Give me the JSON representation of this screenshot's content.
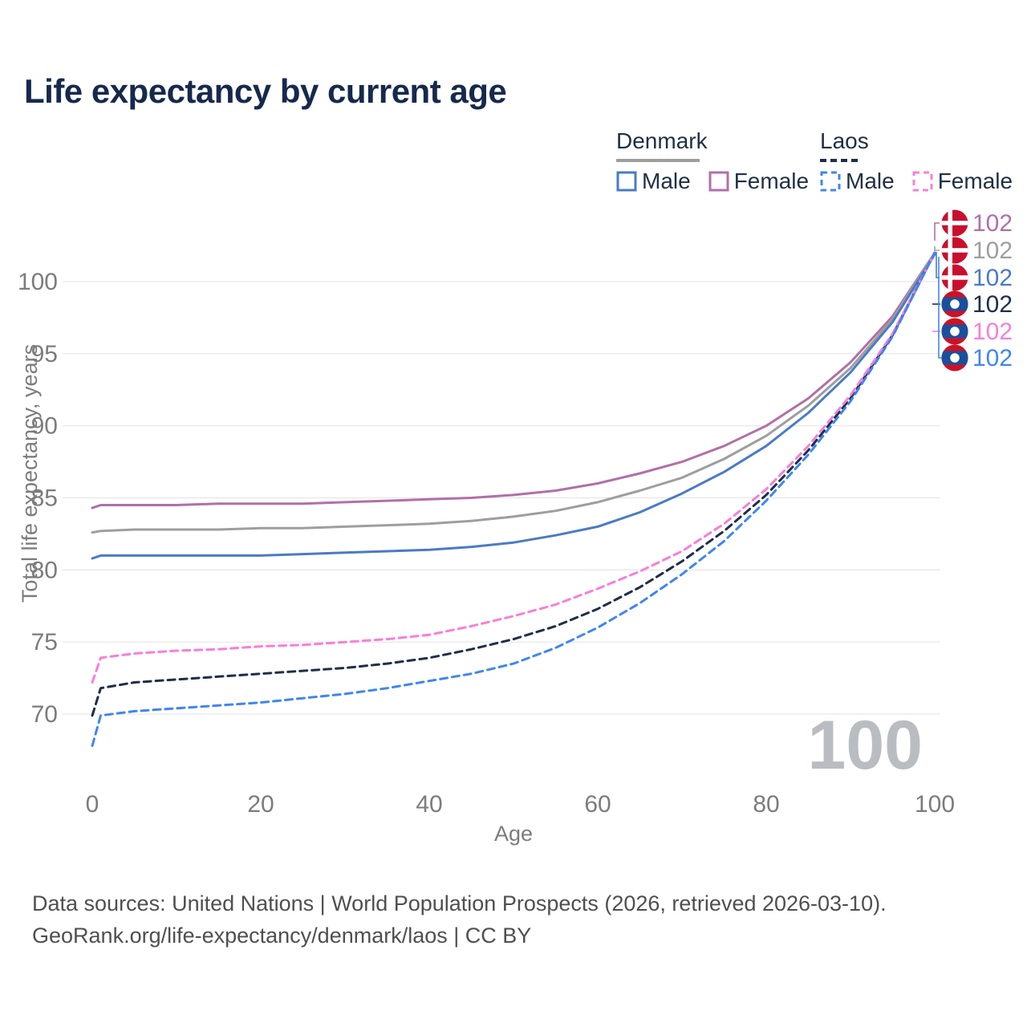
{
  "title": "Life expectancy by current age",
  "legend": {
    "groups": [
      {
        "name": "Denmark",
        "line_style": "solid",
        "underline_color": "#9e9e9e",
        "items": [
          {
            "label": "Male",
            "color": "#4a7bc4",
            "dashed": false
          },
          {
            "label": "Female",
            "color": "#b26fa7",
            "dashed": false
          }
        ]
      },
      {
        "name": "Laos",
        "line_style": "dashed",
        "underline_color": "#1d2e49",
        "items": [
          {
            "label": "Male",
            "color": "#3f86f0",
            "dashed": true
          },
          {
            "label": "Female",
            "color": "#f77fd7",
            "dashed": true
          }
        ]
      }
    ]
  },
  "chart_data": {
    "type": "line",
    "title": "Life expectancy by current age",
    "xlabel": "Age",
    "ylabel": "Total life expectancy, years",
    "xlim": [
      0,
      100
    ],
    "ylim": [
      67,
      102.5
    ],
    "x_ticks": [
      0,
      20,
      40,
      60,
      80,
      100
    ],
    "y_ticks": [
      70,
      75,
      80,
      85,
      90,
      95,
      100
    ],
    "grid": "horizontal",
    "gridline_color": "#e6e6e6",
    "tick_label_color": "#7c7c7c",
    "watermark": "100",
    "watermark_color": "#b9bdc2",
    "x": [
      0,
      1,
      5,
      10,
      15,
      20,
      25,
      30,
      35,
      40,
      45,
      50,
      55,
      60,
      65,
      70,
      75,
      80,
      85,
      90,
      95,
      100
    ],
    "series": [
      {
        "name": "Denmark Female",
        "country": "denmark",
        "sex": "female",
        "color": "#b26fa7",
        "dashed": false,
        "values": [
          84.3,
          84.5,
          84.5,
          84.5,
          84.6,
          84.6,
          84.6,
          84.7,
          84.8,
          84.9,
          85.0,
          85.2,
          85.5,
          86.0,
          86.7,
          87.5,
          88.6,
          90.0,
          91.9,
          94.4,
          97.6,
          102.0
        ]
      },
      {
        "name": "Denmark",
        "country": "denmark",
        "sex": "total",
        "color": "#9e9e9e",
        "dashed": false,
        "values": [
          82.6,
          82.7,
          82.8,
          82.8,
          82.8,
          82.9,
          82.9,
          83.0,
          83.1,
          83.2,
          83.4,
          83.7,
          84.1,
          84.7,
          85.5,
          86.4,
          87.7,
          89.3,
          91.4,
          94.0,
          97.4,
          102.0
        ]
      },
      {
        "name": "Denmark Male",
        "country": "denmark",
        "sex": "male",
        "color": "#4a7bc4",
        "dashed": false,
        "values": [
          80.8,
          81.0,
          81.0,
          81.0,
          81.0,
          81.0,
          81.1,
          81.2,
          81.3,
          81.4,
          81.6,
          81.9,
          82.4,
          83.0,
          84.0,
          85.3,
          86.8,
          88.6,
          90.9,
          93.7,
          97.2,
          101.9
        ]
      },
      {
        "name": "Laos",
        "country": "laos",
        "sex": "total",
        "color": "#1d2e49",
        "dashed": true,
        "values": [
          69.9,
          71.8,
          72.2,
          72.4,
          72.6,
          72.8,
          73.0,
          73.2,
          73.5,
          73.9,
          74.5,
          75.2,
          76.1,
          77.3,
          78.8,
          80.6,
          82.7,
          85.2,
          88.3,
          91.9,
          96.3,
          102.0
        ]
      },
      {
        "name": "Laos Female",
        "country": "laos",
        "sex": "female",
        "color": "#f77fd7",
        "dashed": true,
        "values": [
          72.2,
          73.9,
          74.2,
          74.4,
          74.5,
          74.7,
          74.8,
          75.0,
          75.2,
          75.5,
          76.1,
          76.8,
          77.6,
          78.7,
          79.9,
          81.3,
          83.2,
          85.6,
          88.6,
          92.1,
          96.4,
          102.0
        ]
      },
      {
        "name": "Laos Male",
        "country": "laos",
        "sex": "male",
        "color": "#3f86f0",
        "dashed": true,
        "values": [
          67.8,
          69.9,
          70.2,
          70.4,
          70.6,
          70.8,
          71.1,
          71.4,
          71.8,
          72.3,
          72.8,
          73.5,
          74.6,
          76.0,
          77.7,
          79.7,
          82.0,
          84.8,
          88.0,
          91.7,
          96.2,
          102.0
        ]
      }
    ],
    "end_labels": [
      {
        "flag": "denmark",
        "value": "102",
        "color": "#b26fa7",
        "series": "Denmark Female"
      },
      {
        "flag": "denmark",
        "value": "102",
        "color": "#9e9e9e",
        "series": "Denmark"
      },
      {
        "flag": "denmark",
        "value": "102",
        "color": "#4a7bc4",
        "series": "Denmark Male"
      },
      {
        "flag": "laos",
        "value": "102",
        "color": "#1d2e49",
        "series": "Laos"
      },
      {
        "flag": "laos",
        "value": "102",
        "color": "#f77fd7",
        "series": "Laos Female"
      },
      {
        "flag": "laos",
        "value": "102",
        "color": "#3f86f0",
        "series": "Laos Male"
      }
    ],
    "flag_colors": {
      "denmark_red": "#c8102e",
      "laos_red": "#ce1126",
      "laos_blue": "#1a4f9c",
      "white": "#ffffff"
    }
  },
  "footer": {
    "line1": "Data sources: United Nations | World Population Prospects (2026, retrieved 2026-03-10).",
    "line2": "GeoRank.org/life-expectancy/denmark/laos | CC BY"
  }
}
